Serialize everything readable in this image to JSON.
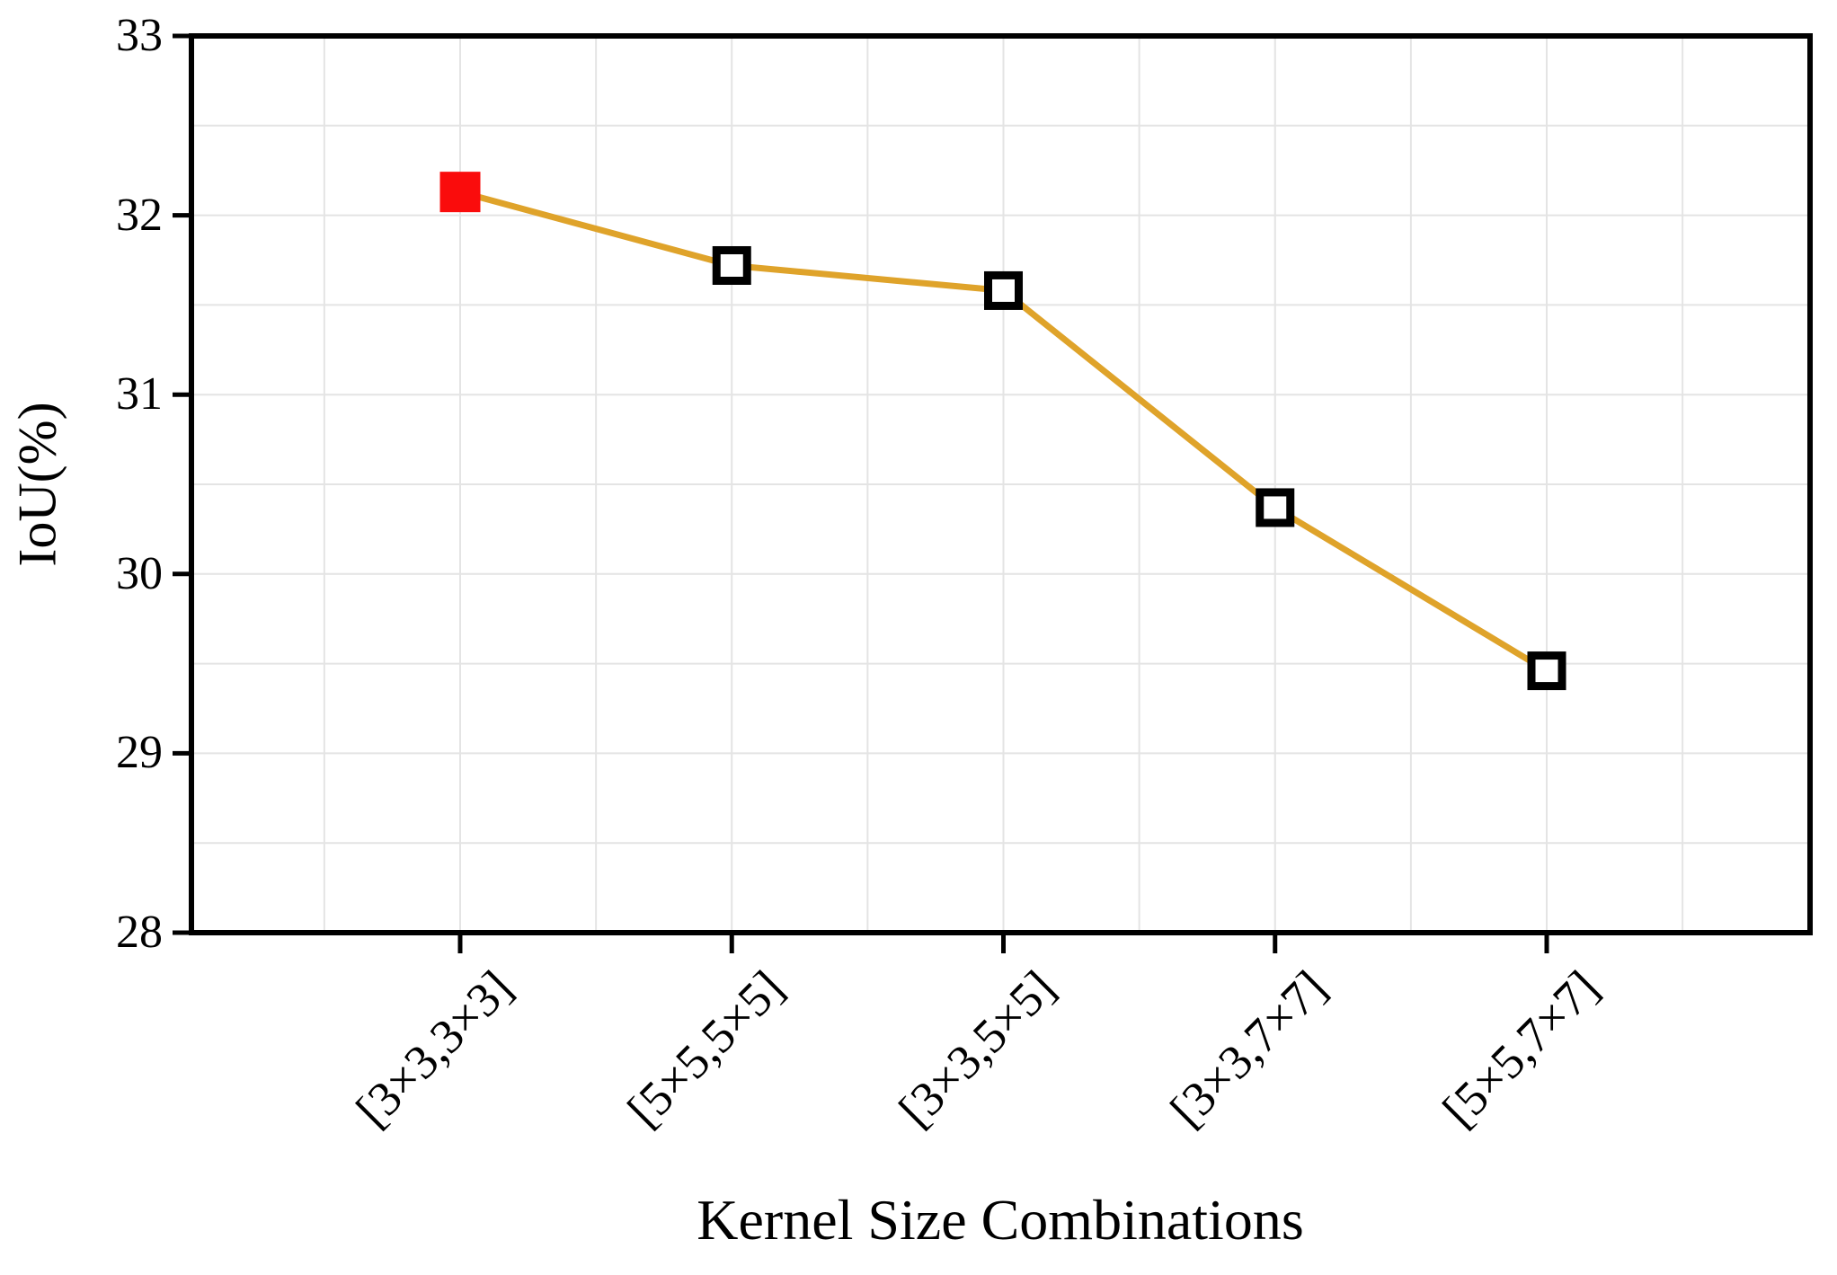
{
  "figure": {
    "background": "#ffffff"
  },
  "chart_data": {
    "type": "line",
    "title": "",
    "xlabel": "Kernel Size Combinations",
    "ylabel": "IoU(%)",
    "categories": [
      "[3×3,3×3]",
      "[5×5,5×5]",
      "[3×3,5×5]",
      "[3×3,7×7]",
      "[5×5,7×7]"
    ],
    "series": [
      {
        "name": "IoU",
        "values": [
          32.13,
          31.72,
          31.58,
          30.37,
          29.46
        ]
      }
    ],
    "ylim": [
      28,
      33
    ],
    "yticks": [
      33,
      32,
      31,
      30,
      29,
      28
    ],
    "grid": {
      "shown": true,
      "horizontal_step": 0.5,
      "vertical_step": "half-category"
    },
    "legend_position": "none",
    "styles": {
      "line_color": "#dfa32a",
      "marker_shape": "square",
      "first_marker_fill": "#fa0c0c",
      "marker_fill": "#ffffff",
      "marker_edge_color": "#000000",
      "grid_color": "#e4e4e4",
      "axis_color": "#000000"
    }
  }
}
